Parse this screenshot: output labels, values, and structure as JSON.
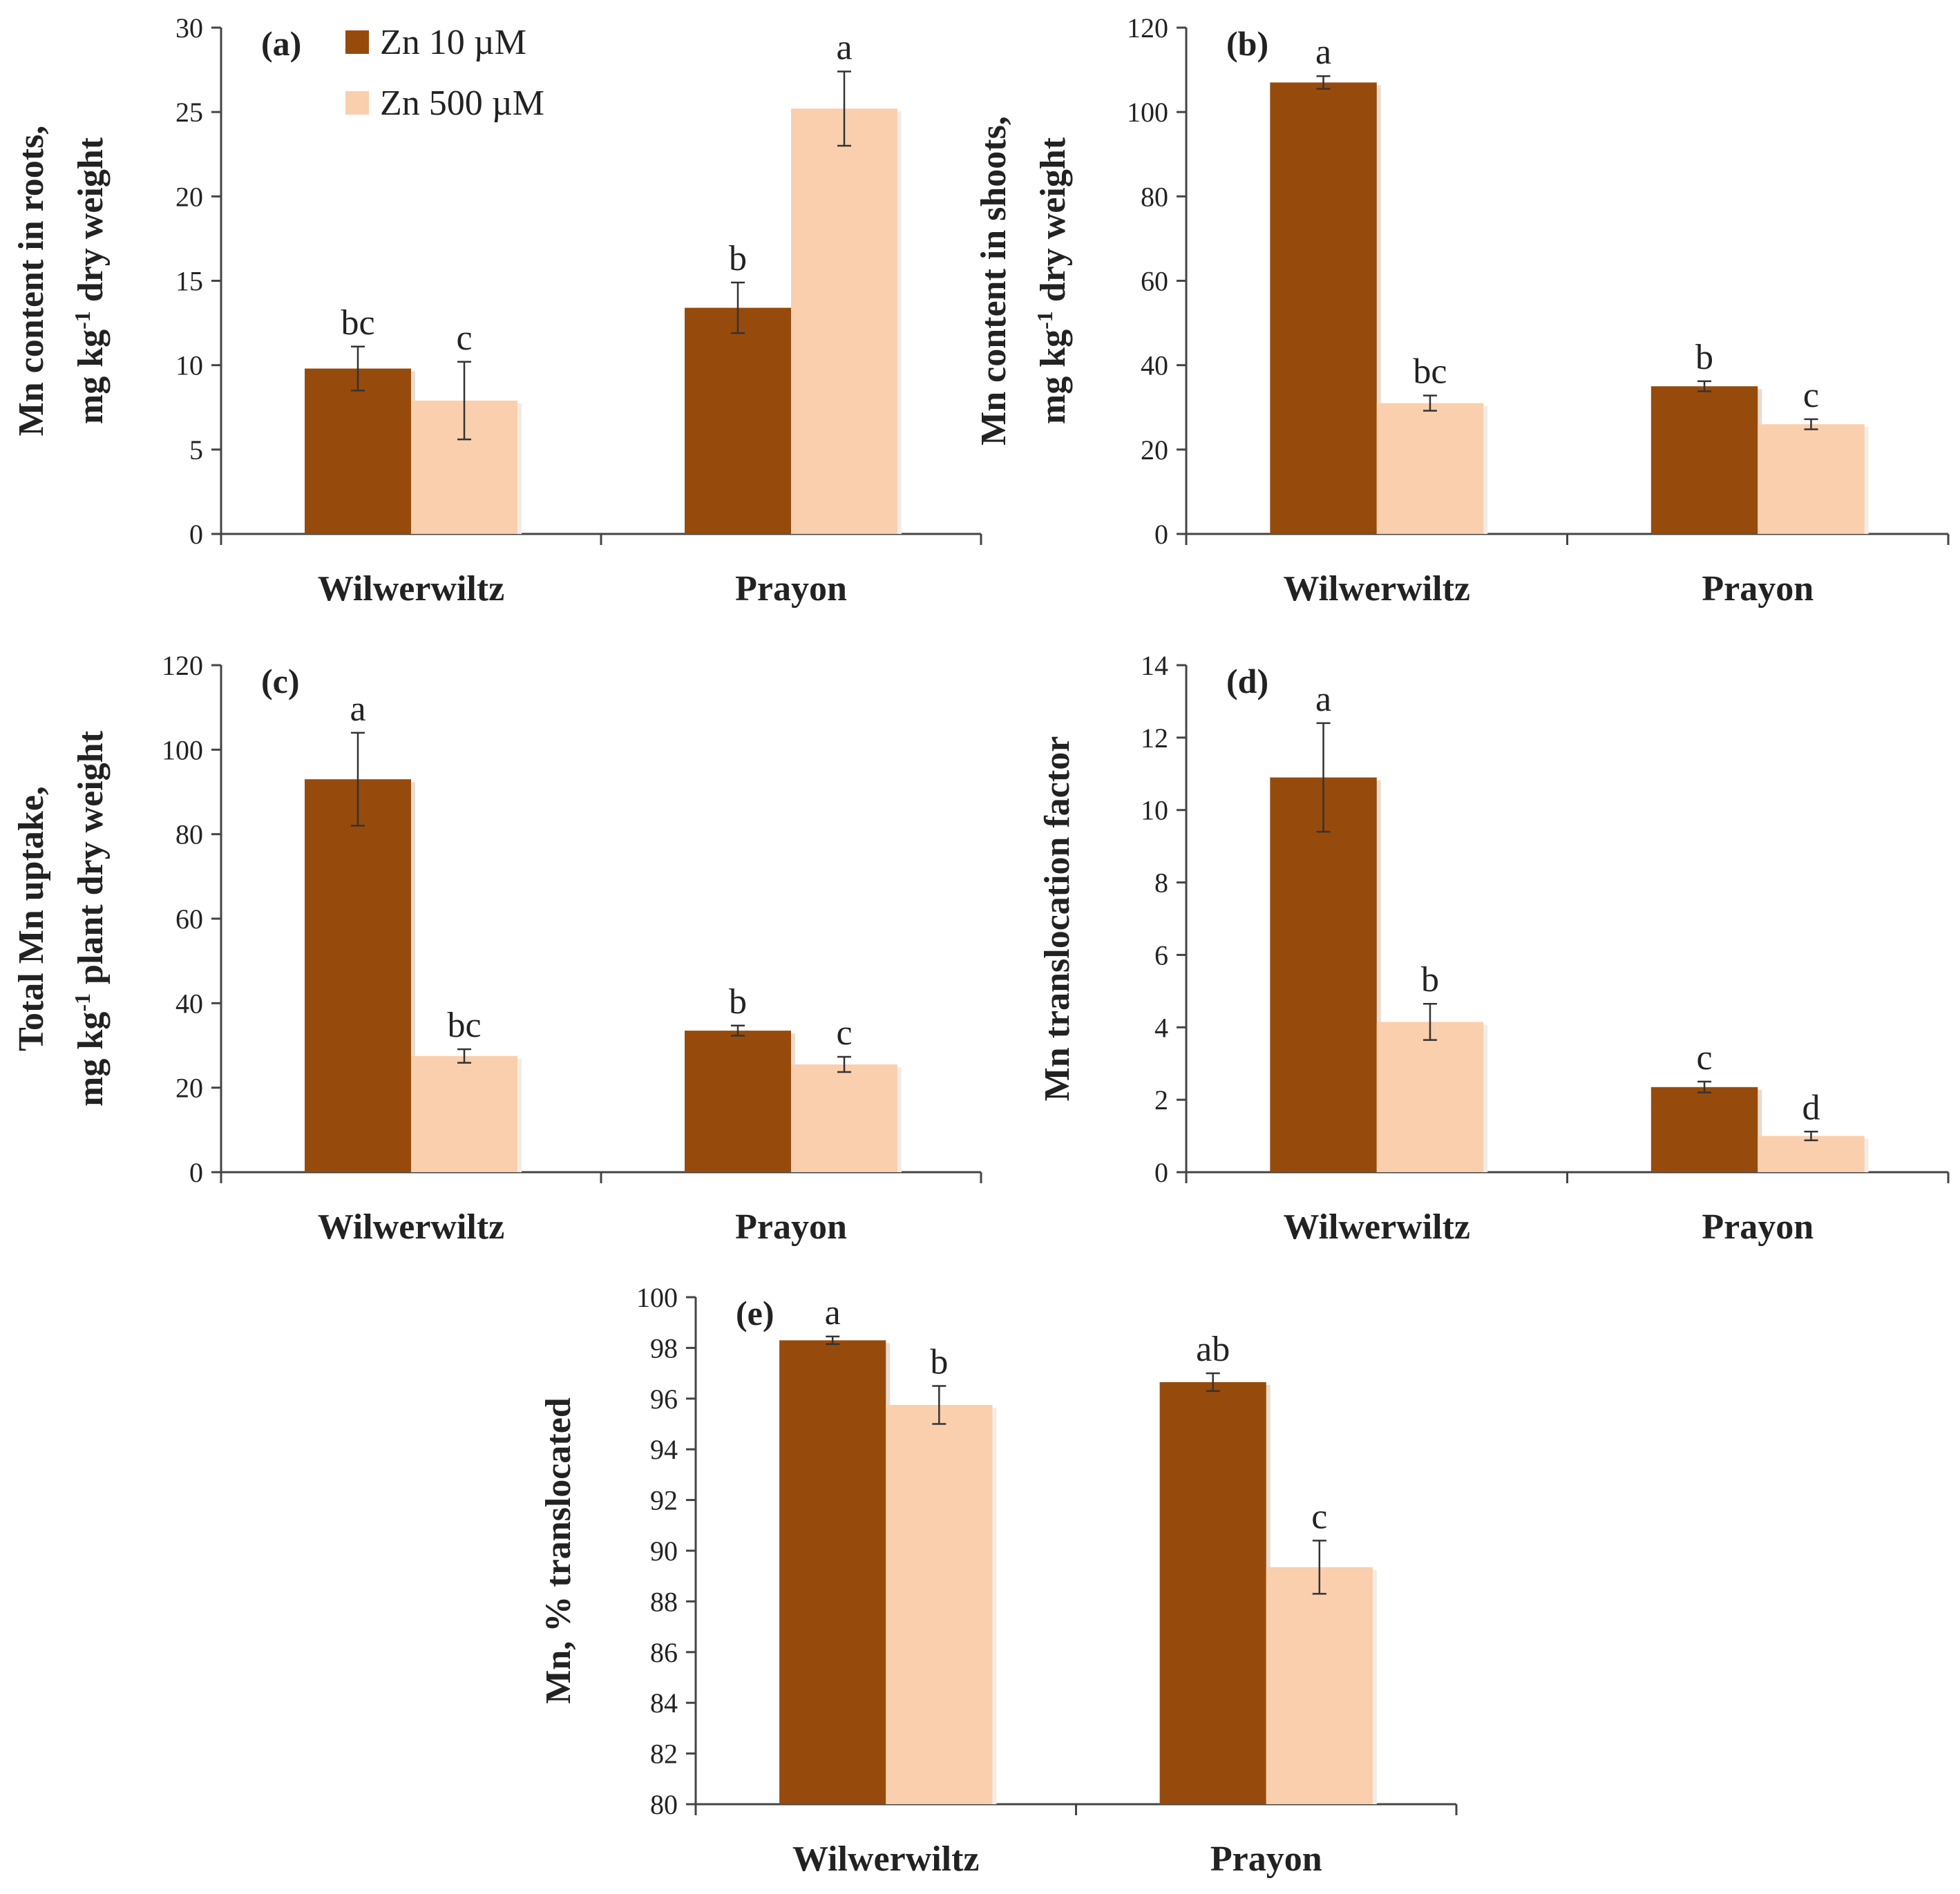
{
  "colors": {
    "zn10": "#964B0C",
    "zn500": "#F9CFAE",
    "axis": "#444444",
    "text": "#222222"
  },
  "legend": [
    "Zn 10 µM",
    "Zn 500 µM"
  ],
  "chart_data": [
    {
      "type": "bar",
      "panel_label": "(a)",
      "ylabel_lines": [
        {
          "parts": [
            {
              "t": "Mn content in roots,"
            }
          ]
        },
        {
          "parts": [
            {
              "t": "mg kg"
            },
            {
              "t": "-1",
              "sup": true
            },
            {
              "t": " dry weight"
            }
          ]
        }
      ],
      "categories": [
        "Wilwerwiltz",
        "Prayon"
      ],
      "ylim": [
        0,
        30
      ],
      "yticks": [
        "0",
        "5",
        "10",
        "15",
        "20",
        "25",
        "30"
      ],
      "series": [
        {
          "name": "Zn 10 µM",
          "values": [
            9.8,
            13.4
          ],
          "errors": [
            1.3,
            1.5
          ],
          "letters": [
            "bc",
            "b"
          ]
        },
        {
          "name": "Zn 500 µM",
          "values": [
            7.9,
            25.2
          ],
          "errors": [
            2.3,
            2.2
          ],
          "letters": [
            "c",
            "a"
          ]
        }
      ],
      "legend": "top-left"
    },
    {
      "type": "bar",
      "panel_label": "(b)",
      "ylabel_lines": [
        {
          "parts": [
            {
              "t": "Mn content in shoots,"
            }
          ]
        },
        {
          "parts": [
            {
              "t": "mg kg"
            },
            {
              "t": "-1",
              "sup": true
            },
            {
              "t": " dry weight"
            }
          ]
        }
      ],
      "categories": [
        "Wilwerwiltz",
        "Prayon"
      ],
      "ylim": [
        0,
        120
      ],
      "yticks": [
        "0",
        "20",
        "40",
        "60",
        "80",
        "100",
        "120"
      ],
      "series": [
        {
          "name": "Zn 10 µM",
          "values": [
            107,
            35
          ],
          "errors": [
            1.5,
            1.2
          ],
          "letters": [
            "a",
            "b"
          ]
        },
        {
          "name": "Zn 500 µM",
          "values": [
            31,
            26
          ],
          "errors": [
            1.8,
            1.2
          ],
          "letters": [
            "bc",
            "c"
          ]
        }
      ]
    },
    {
      "type": "bar",
      "panel_label": "(c)",
      "ylabel_lines": [
        {
          "parts": [
            {
              "t": "Total Mn uptake,"
            }
          ]
        },
        {
          "parts": [
            {
              "t": "mg kg"
            },
            {
              "t": "-1",
              "sup": true
            },
            {
              "t": " plant dry weight"
            }
          ]
        }
      ],
      "categories": [
        "Wilwerwiltz",
        "Prayon"
      ],
      "ylim": [
        0,
        120
      ],
      "yticks": [
        "0",
        "20",
        "40",
        "60",
        "80",
        "100",
        "120"
      ],
      "series": [
        {
          "name": "Zn 10 µM",
          "values": [
            93,
            33.5
          ],
          "errors": [
            11,
            1.2
          ],
          "letters": [
            "a",
            "b"
          ]
        },
        {
          "name": "Zn 500 µM",
          "values": [
            27.5,
            25.5
          ],
          "errors": [
            1.6,
            1.8
          ],
          "letters": [
            "bc",
            "c"
          ]
        }
      ]
    },
    {
      "type": "bar",
      "panel_label": "(d)",
      "ylabel_lines": [
        {
          "parts": [
            {
              "t": "Mn translocation factor"
            }
          ]
        }
      ],
      "categories": [
        "Wilwerwiltz",
        "Prayon"
      ],
      "ylim": [
        0,
        14
      ],
      "yticks": [
        "0",
        "2",
        "4",
        "6",
        "8",
        "10",
        "12",
        "14"
      ],
      "series": [
        {
          "name": "Zn 10 µM",
          "values": [
            10.9,
            2.35
          ],
          "errors": [
            1.5,
            0.15
          ],
          "letters": [
            "a",
            "c"
          ]
        },
        {
          "name": "Zn 500 µM",
          "values": [
            4.15,
            1.0
          ],
          "errors": [
            0.5,
            0.12
          ],
          "letters": [
            "b",
            "d"
          ]
        }
      ]
    },
    {
      "type": "bar",
      "panel_label": "(e)",
      "ylabel_lines": [
        {
          "parts": [
            {
              "t": "Mn, % translocated"
            }
          ]
        }
      ],
      "categories": [
        "Wilwerwiltz",
        "Prayon"
      ],
      "ylim": [
        80,
        100
      ],
      "yticks": [
        "80",
        "82",
        "84",
        "86",
        "88",
        "90",
        "92",
        "94",
        "96",
        "98",
        "100"
      ],
      "series": [
        {
          "name": "Zn 10 µM",
          "values": [
            98.3,
            96.65
          ],
          "errors": [
            0.15,
            0.35
          ],
          "letters": [
            "a",
            "ab"
          ]
        },
        {
          "name": "Zn 500 µM",
          "values": [
            95.75,
            89.35
          ],
          "errors": [
            0.75,
            1.05
          ],
          "letters": [
            "b",
            "c"
          ]
        }
      ]
    }
  ]
}
